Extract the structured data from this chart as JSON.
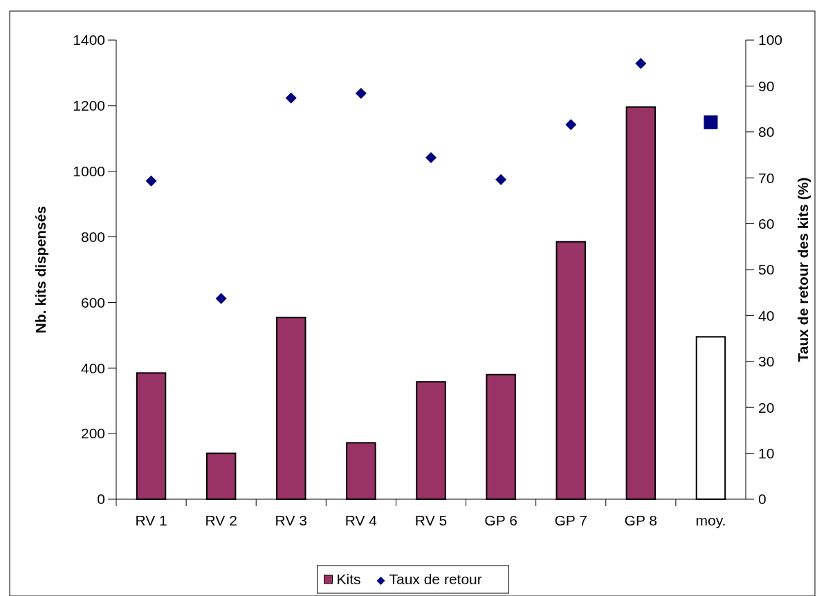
{
  "chart_data": {
    "type": "bar",
    "categories": [
      "RV 1",
      "RV 2",
      "RV 3",
      "RV 4",
      "RV 5",
      "GP 6",
      "GP 7",
      "GP 8",
      "moy."
    ],
    "series": [
      {
        "name": "Kits",
        "color": "#993366",
        "colors": [
          "#993366",
          "#993366",
          "#993366",
          "#993366",
          "#993366",
          "#993366",
          "#993366",
          "#993366",
          "#ffffff"
        ],
        "values": [
          385,
          140,
          554,
          172,
          358,
          380,
          785,
          1196,
          495
        ]
      },
      {
        "name": "Taux de retour",
        "type": "scatter",
        "axis": "y2",
        "marker": "diamond",
        "color": "#000080",
        "values": [
          69.3,
          43.7,
          87.4,
          88.4,
          74.4,
          69.6,
          81.6,
          94.9,
          null
        ]
      },
      {
        "type": "scatter",
        "axis": "y2",
        "marker": "square",
        "color": "#000080",
        "values": [
          null,
          null,
          null,
          null,
          null,
          null,
          null,
          null,
          82.1
        ]
      }
    ],
    "ylabel": "Nb. kits dispensés",
    "y2label": "Taux de retour des kits (%)",
    "ylim": [
      0,
      1400
    ],
    "yticks": [
      0,
      200,
      400,
      600,
      800,
      1000,
      1200,
      1400
    ],
    "y2lim": [
      0,
      100
    ],
    "y2ticks": [
      0,
      10,
      20,
      30,
      40,
      50,
      60,
      70,
      80,
      90,
      100
    ],
    "grid": false,
    "legend": "bottom"
  }
}
